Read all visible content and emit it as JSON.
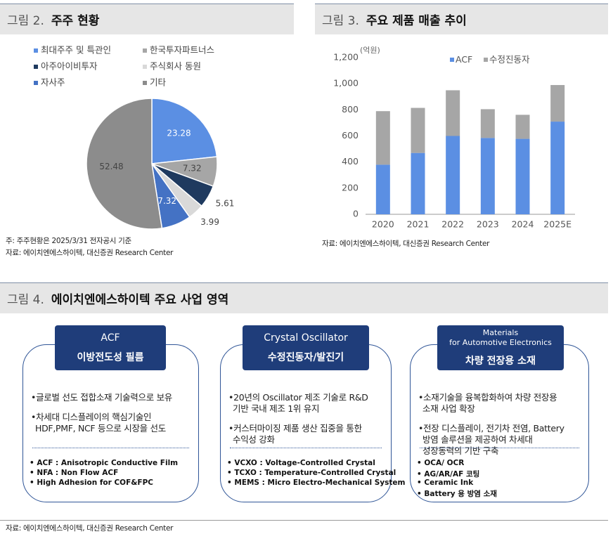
{
  "chart_data": [
    {
      "type": "pie",
      "figure_label": "그림 2.",
      "title": "주주 현황",
      "categories": [
        "최대주주 및 특관인",
        "한국투자파트너스",
        "아주아이비투자",
        "주식회사 동원",
        "자사주",
        "기타"
      ],
      "values": [
        23.28,
        7.32,
        5.61,
        3.99,
        7.32,
        52.48
      ],
      "colors": [
        "#5b8fe3",
        "#a6a6a6",
        "#1f3a5f",
        "#d9d9d9",
        "#4472c4",
        "#8c8c8c"
      ],
      "note": "주: 주주현황은 2025/3/31 전자공시 기준",
      "source": "자료: 에이치엔에스하이텍, 대신증권 Research Center"
    },
    {
      "type": "bar",
      "stacked": true,
      "figure_label": "그림 3.",
      "title": "주요 제품 매출 추이",
      "y_label": "(억원)",
      "categories": [
        "2020",
        "2021",
        "2022",
        "2023",
        "2024",
        "2025E"
      ],
      "series": [
        {
          "name": "ACF",
          "color": "#5b8fe3",
          "values": [
            380,
            470,
            600,
            585,
            578,
            710
          ]
        },
        {
          "name": "수정진동자",
          "color": "#a6a6a6",
          "values": [
            410,
            345,
            350,
            220,
            184,
            280
          ]
        }
      ],
      "ylim": [
        0,
        1200
      ],
      "yticks": [
        0,
        200,
        400,
        600,
        800,
        {
          "value": 1000,
          "label": "1,000"
        },
        {
          "value": 1200,
          "label": "1,200"
        }
      ],
      "source": "자료: 에이치엔에스하이텍, 대신증권 Research Center"
    }
  ],
  "figure4": {
    "label": "그림 4.",
    "title": "에이치엔에스하이텍 주요 사업 영역",
    "panels": [
      {
        "heading": [
          "ACF"
        ],
        "subheading": "이방전도성 필름",
        "bullets": [
          [
            "•글로벌 선도 접합소재 기술력으로 보유"
          ],
          [
            "•차세대 디스플레이의 핵심기술인",
            "HDF,PMF, NCF 등으로 시장을 선도"
          ]
        ],
        "items": [
          "• ACF : Anisotropic Conductive Film",
          "• NFA : Non Flow ACF",
          "• High Adhesion for COF&FPC"
        ]
      },
      {
        "heading": [
          "Crystal Oscillator"
        ],
        "subheading": "수정진동자/발진기",
        "bullets": [
          [
            "•20년의 Oscillator 제조 기술로 R&D",
            "기반 국내 제조 1위 유지"
          ],
          [
            "•커스터마이징 제품 생산 집중을 통한",
            "수익성 강화"
          ]
        ],
        "items": [
          "• VCXO : Voltage-Controlled Crystal",
          "• TCXO : Temperature-Controlled Crystal",
          "• MEMS : Micro Electro-Mechanical System"
        ]
      },
      {
        "heading": [
          "Materials",
          "for Automotive Electronics"
        ],
        "subheading": "차량 전장용 소재",
        "bullets": [
          [
            "•소재기술을 융복합화하여 차량 전장용",
            "소재 사업 확장"
          ],
          [
            "•전장 디스플레이, 전기차 전염, Battery",
            "방염 솔루션을 제공하여 차세대",
            "성장동력의 기반 구축"
          ]
        ],
        "items": [
          "• OCA/ OCR",
          "• AG/AR/AF 코팅",
          "• Ceramic Ink",
          "• Battery 용 방염 소재"
        ]
      }
    ],
    "source": "자료: 에이치엔에스하이텍, 대신증권 Research Center"
  }
}
